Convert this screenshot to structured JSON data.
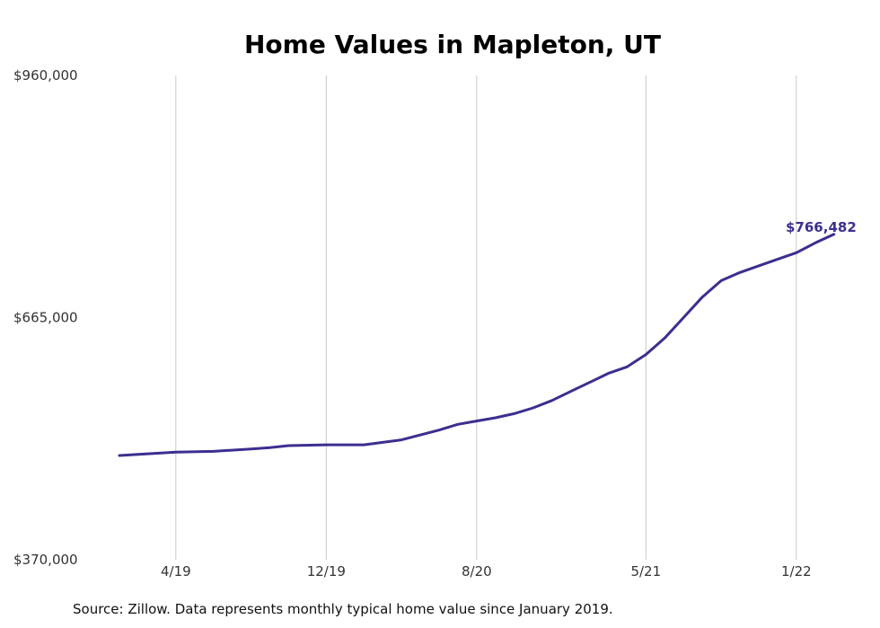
{
  "chart_data": {
    "type": "line",
    "title": "Home Values in Mapleton, UT",
    "xlabel": "",
    "ylabel": "",
    "ylim": [
      370000,
      960000
    ],
    "y_ticks": [
      {
        "value": 370000,
        "label": "$370,000"
      },
      {
        "value": 665000,
        "label": "$665,000"
      },
      {
        "value": 960000,
        "label": "$960,000"
      }
    ],
    "x_ticks": [
      {
        "date": "2019-04",
        "label": "4/19"
      },
      {
        "date": "2019-12",
        "label": "12/19"
      },
      {
        "date": "2020-08",
        "label": "8/20"
      },
      {
        "date": "2021-05",
        "label": "5/21"
      },
      {
        "date": "2022-01",
        "label": "1/22"
      }
    ],
    "xlim": [
      "2019-01",
      "2022-07"
    ],
    "grid": {
      "vertical": true,
      "horizontal": false
    },
    "series": [
      {
        "color": "#3b2f8f",
        "points": [
          {
            "date": "2019-01",
            "value": 497000
          },
          {
            "date": "2019-04",
            "value": 501000
          },
          {
            "date": "2019-06",
            "value": 502000
          },
          {
            "date": "2019-08",
            "value": 505000
          },
          {
            "date": "2019-09",
            "value": 506500
          },
          {
            "date": "2019-10",
            "value": 509000
          },
          {
            "date": "2019-12",
            "value": 510000
          },
          {
            "date": "2020-01",
            "value": 510000
          },
          {
            "date": "2020-02",
            "value": 510000
          },
          {
            "date": "2020-04",
            "value": 516000
          },
          {
            "date": "2020-06",
            "value": 528000
          },
          {
            "date": "2020-07",
            "value": 535000
          },
          {
            "date": "2020-08",
            "value": 539000
          },
          {
            "date": "2020-09",
            "value": 543000
          },
          {
            "date": "2020-10",
            "value": 548000
          },
          {
            "date": "2020-11",
            "value": 555000
          },
          {
            "date": "2020-12",
            "value": 564000
          },
          {
            "date": "2021-01",
            "value": 575000
          },
          {
            "date": "2021-02",
            "value": 586000
          },
          {
            "date": "2021-03",
            "value": 597000
          },
          {
            "date": "2021-04",
            "value": 605000
          },
          {
            "date": "2021-05",
            "value": 620000
          },
          {
            "date": "2021-06",
            "value": 640000
          },
          {
            "date": "2021-07",
            "value": 665000
          },
          {
            "date": "2021-08",
            "value": 690000
          },
          {
            "date": "2021-09",
            "value": 710000
          },
          {
            "date": "2021-10",
            "value": 720000
          },
          {
            "date": "2021-11",
            "value": 728000
          },
          {
            "date": "2021-12",
            "value": 736000
          },
          {
            "date": "2022-01",
            "value": 744000
          },
          {
            "date": "2022-02",
            "value": 756000
          },
          {
            "date": "2022-03",
            "value": 766482
          }
        ]
      }
    ],
    "end_label": "$766,482",
    "source_note": "Source: Zillow. Data represents monthly typical home value since January 2019."
  }
}
